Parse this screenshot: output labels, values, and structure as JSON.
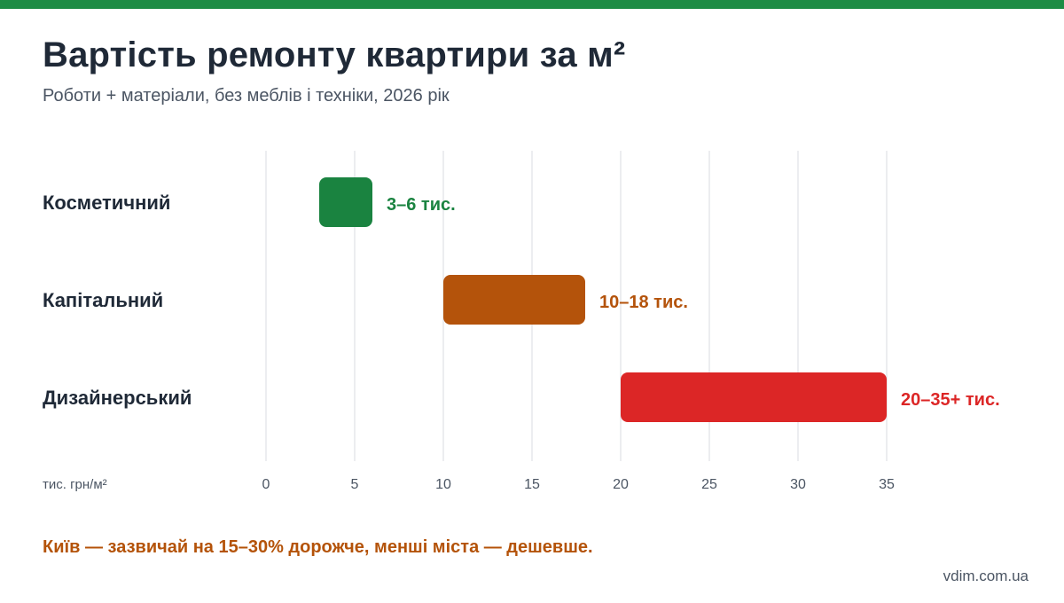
{
  "header": {
    "title": "Вартість ремонту квартири за м²",
    "subtitle": "Роботи + матеріали, без меблів і техніки, 2026 рік"
  },
  "chart_data": {
    "type": "bar",
    "orientation": "horizontal-range",
    "categories": [
      "Косметичний",
      "Капітальний",
      "Дизайнерський"
    ],
    "ranges": [
      {
        "category": "Косметичний",
        "min": 3,
        "max": 6,
        "label": "3–6 тис.",
        "color": "#1a8340"
      },
      {
        "category": "Капітальний",
        "min": 10,
        "max": 18,
        "label": "10–18 тис.",
        "color": "#b4530b"
      },
      {
        "category": "Дизайнерський",
        "min": 20,
        "max": 35,
        "label": "20–35+ тис.",
        "color": "#dc2626"
      }
    ],
    "xlabel": "тис. грн/м²",
    "xlim": [
      0,
      35
    ],
    "xticks": [
      0,
      5,
      10,
      15,
      20,
      25,
      30,
      35
    ],
    "grid": true
  },
  "footer": {
    "note": "Київ — зазвичай на 15–30% дорожче, менші міста — дешевше.",
    "source": "vdim.com.ua"
  }
}
